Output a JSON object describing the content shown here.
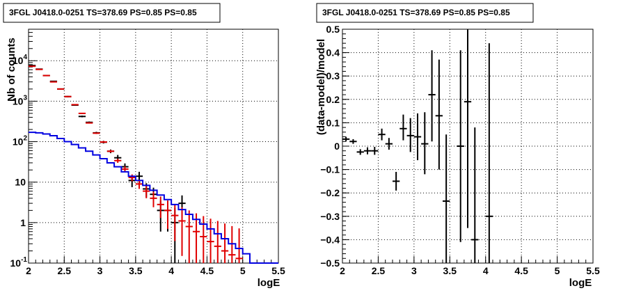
{
  "chart_data": [
    {
      "type": "line",
      "title": "3FGL J0418.0-0251 TS=378.69 PS=0.85 PS=0.85",
      "xlabel": "logE",
      "ylabel": "Nb of counts",
      "xlim": [
        2,
        5.5
      ],
      "ylim": [
        0.1,
        60000
      ],
      "yscale": "log",
      "grid": true,
      "x_ticks": [
        "2",
        "2.5",
        "3",
        "3.5",
        "4",
        "4.5",
        "5",
        "5.5"
      ],
      "y_ticks": [
        {
          "value": 0.1,
          "base": "10",
          "exp": "-1"
        },
        {
          "value": 1,
          "base": "1",
          "exp": ""
        },
        {
          "value": 10,
          "base": "10",
          "exp": ""
        },
        {
          "value": 100,
          "base": "10",
          "exp": "2"
        },
        {
          "value": 1000,
          "base": "10",
          "exp": "3"
        },
        {
          "value": 10000,
          "base": "10",
          "exp": "4"
        }
      ],
      "series": [
        {
          "color": "#000000",
          "points": [
            {
              "x": 2.05,
              "y": 7600,
              "lo": 7400,
              "hi": 7800
            },
            {
              "x": 2.15,
              "y": 6200,
              "lo": 6050,
              "hi": 6350
            },
            {
              "x": 2.25,
              "y": 4300,
              "lo": 4180,
              "hi": 4420
            },
            {
              "x": 2.35,
              "y": 3100,
              "lo": 3000,
              "hi": 3200
            },
            {
              "x": 2.45,
              "y": 2000,
              "lo": 1930,
              "hi": 2070
            },
            {
              "x": 2.55,
              "y": 1300,
              "lo": 1250,
              "hi": 1350
            },
            {
              "x": 2.65,
              "y": 800,
              "lo": 770,
              "hi": 830
            },
            {
              "x": 2.75,
              "y": 420,
              "lo": 400,
              "hi": 440
            },
            {
              "x": 2.85,
              "y": 300,
              "lo": 285,
              "hi": 315
            },
            {
              "x": 2.95,
              "y": 165,
              "lo": 155,
              "hi": 175
            },
            {
              "x": 3.05,
              "y": 97,
              "lo": 90,
              "hi": 105
            },
            {
              "x": 3.15,
              "y": 58,
              "lo": 52,
              "hi": 64
            },
            {
              "x": 3.25,
              "y": 40,
              "lo": 34,
              "hi": 47
            },
            {
              "x": 3.35,
              "y": 24,
              "lo": 19,
              "hi": 29
            },
            {
              "x": 3.45,
              "y": 11,
              "lo": 7.5,
              "hi": 14.5
            },
            {
              "x": 3.55,
              "y": 14,
              "lo": 10.5,
              "hi": 18
            },
            {
              "x": 3.65,
              "y": 6.8,
              "lo": 4.2,
              "hi": 9.4
            },
            {
              "x": 3.75,
              "y": 5,
              "lo": 2.8,
              "hi": 7.3
            },
            {
              "x": 3.85,
              "y": 2,
              "lo": 0.6,
              "hi": 3.5
            },
            {
              "x": 3.95,
              "y": 2,
              "lo": 0.6,
              "hi": 3.5
            },
            {
              "x": 4.05,
              "y": 1,
              "lo": 0.1,
              "hi": 2.3
            },
            {
              "x": 4.15,
              "y": 3,
              "lo": 1.3,
              "hi": 4.7
            }
          ]
        },
        {
          "color": "#e00000",
          "points": [
            {
              "x": 2.05,
              "y": 7300,
              "lo": 7250,
              "hi": 7350
            },
            {
              "x": 2.15,
              "y": 6100,
              "lo": 6060,
              "hi": 6140
            },
            {
              "x": 2.25,
              "y": 4300,
              "lo": 4270,
              "hi": 4330
            },
            {
              "x": 2.35,
              "y": 3000,
              "lo": 2980,
              "hi": 3020
            },
            {
              "x": 2.45,
              "y": 2000,
              "lo": 1985,
              "hi": 2015
            },
            {
              "x": 2.55,
              "y": 1300,
              "lo": 1290,
              "hi": 1310
            },
            {
              "x": 2.65,
              "y": 820,
              "lo": 805,
              "hi": 835
            },
            {
              "x": 2.75,
              "y": 500,
              "lo": 485,
              "hi": 515
            },
            {
              "x": 2.85,
              "y": 290,
              "lo": 280,
              "hi": 300
            },
            {
              "x": 2.95,
              "y": 162,
              "lo": 156,
              "hi": 168
            },
            {
              "x": 3.05,
              "y": 98,
              "lo": 93,
              "hi": 103
            },
            {
              "x": 3.15,
              "y": 58,
              "lo": 54,
              "hi": 62
            },
            {
              "x": 3.25,
              "y": 34,
              "lo": 30,
              "hi": 38
            },
            {
              "x": 3.35,
              "y": 21,
              "lo": 18,
              "hi": 24.5
            },
            {
              "x": 3.45,
              "y": 13,
              "lo": 10.5,
              "hi": 15.5
            },
            {
              "x": 3.55,
              "y": 9,
              "lo": 6.8,
              "hi": 11.5
            },
            {
              "x": 3.65,
              "y": 6,
              "lo": 4,
              "hi": 8.2
            },
            {
              "x": 3.75,
              "y": 4,
              "lo": 2.4,
              "hi": 5.8
            },
            {
              "x": 3.85,
              "y": 2.8,
              "lo": 1.3,
              "hi": 4.4
            },
            {
              "x": 3.95,
              "y": 2,
              "lo": 0.7,
              "hi": 3.5
            },
            {
              "x": 4.05,
              "y": 1.5,
              "lo": 0.35,
              "hi": 2.9
            },
            {
              "x": 4.15,
              "y": 1.1,
              "lo": 0.15,
              "hi": 2.4
            },
            {
              "x": 4.25,
              "y": 0.8,
              "lo": 0.1,
              "hi": 2.0
            },
            {
              "x": 4.35,
              "y": 0.6,
              "lo": 0.1,
              "hi": 1.7
            },
            {
              "x": 4.45,
              "y": 0.45,
              "lo": 0.1,
              "hi": 1.45
            },
            {
              "x": 4.55,
              "y": 0.34,
              "lo": 0.1,
              "hi": 1.25
            },
            {
              "x": 4.65,
              "y": 0.26,
              "lo": 0.1,
              "hi": 1.1
            },
            {
              "x": 4.75,
              "y": 0.2,
              "lo": 0.1,
              "hi": 0.95
            },
            {
              "x": 4.85,
              "y": 0.16,
              "lo": 0.1,
              "hi": 0.82
            },
            {
              "x": 4.95,
              "y": 0.13,
              "lo": 0.1,
              "hi": 0.72
            }
          ]
        },
        {
          "color": "#0000e0",
          "kind": "step",
          "edges": [
            2.0,
            2.1,
            2.2,
            2.3,
            2.4,
            2.5,
            2.6,
            2.7,
            2.8,
            2.9,
            3.0,
            3.1,
            3.2,
            3.3,
            3.4,
            3.5,
            3.6,
            3.7,
            3.8,
            3.9,
            4.0,
            4.1,
            4.2,
            4.3,
            4.4,
            4.5,
            4.6,
            4.7,
            4.8,
            4.9,
            5.0,
            5.1,
            5.5
          ],
          "values": [
            170,
            165,
            155,
            140,
            120,
            100,
            85,
            70,
            58,
            47,
            38,
            30,
            24,
            18,
            14,
            11,
            8.3,
            6.3,
            4.8,
            3.7,
            2.8,
            2.1,
            1.6,
            1.2,
            0.92,
            0.7,
            0.53,
            0.4,
            0.3,
            0.23,
            0.17,
            0.1
          ]
        }
      ]
    },
    {
      "type": "scatter",
      "title": "3FGL J0418.0-0251 TS=378.69 PS=0.85 PS=0.85",
      "xlabel": "logE",
      "ylabel": "(data-model)/model",
      "xlim": [
        2,
        5.5
      ],
      "ylim": [
        -0.5,
        0.5
      ],
      "grid": true,
      "x_ticks": [
        "2",
        "2.5",
        "3",
        "3.5",
        "4",
        "4.5",
        "5",
        "5.5"
      ],
      "y_ticks": [
        "−0.5",
        "−0.4",
        "−0.3",
        "−0.2",
        "−0.1",
        "0",
        "0.1",
        "0.2",
        "0.3",
        "0.4",
        "0.5"
      ],
      "series": [
        {
          "color": "#000000",
          "points": [
            {
              "x": 2.05,
              "y": 0.03,
              "lo": 0.02,
              "hi": 0.04
            },
            {
              "x": 2.15,
              "y": 0.02,
              "lo": 0.01,
              "hi": 0.03
            },
            {
              "x": 2.25,
              "y": -0.025,
              "lo": -0.037,
              "hi": -0.013
            },
            {
              "x": 2.35,
              "y": -0.02,
              "lo": -0.035,
              "hi": -0.005
            },
            {
              "x": 2.45,
              "y": -0.02,
              "lo": -0.037,
              "hi": -0.003
            },
            {
              "x": 2.55,
              "y": 0.05,
              "lo": 0.025,
              "hi": 0.075
            },
            {
              "x": 2.65,
              "y": 0.01,
              "lo": -0.015,
              "hi": 0.035
            },
            {
              "x": 2.75,
              "y": -0.15,
              "lo": -0.19,
              "hi": -0.11
            },
            {
              "x": 2.85,
              "y": 0.075,
              "lo": 0.025,
              "hi": 0.135
            },
            {
              "x": 2.95,
              "y": 0.045,
              "lo": -0.025,
              "hi": 0.12
            },
            {
              "x": 3.05,
              "y": 0.04,
              "lo": -0.06,
              "hi": 0.14
            },
            {
              "x": 3.15,
              "y": 0.01,
              "lo": -0.12,
              "hi": 0.145
            },
            {
              "x": 3.25,
              "y": 0.22,
              "lo": 0.02,
              "hi": 0.41
            },
            {
              "x": 3.35,
              "y": 0.13,
              "lo": -0.1,
              "hi": 0.37
            },
            {
              "x": 3.45,
              "y": -0.235,
              "lo": -0.5,
              "hi": 0.05
            },
            {
              "x": 3.65,
              "y": 0.0,
              "lo": -0.41,
              "hi": 0.41
            },
            {
              "x": 3.75,
              "y": 0.19,
              "lo": -0.35,
              "hi": 0.5
            },
            {
              "x": 3.85,
              "y": -0.4,
              "lo": -0.5,
              "hi": 0.08
            },
            {
              "x": 4.05,
              "y": -0.3,
              "lo": -0.5,
              "hi": 0.44
            }
          ]
        }
      ]
    }
  ]
}
